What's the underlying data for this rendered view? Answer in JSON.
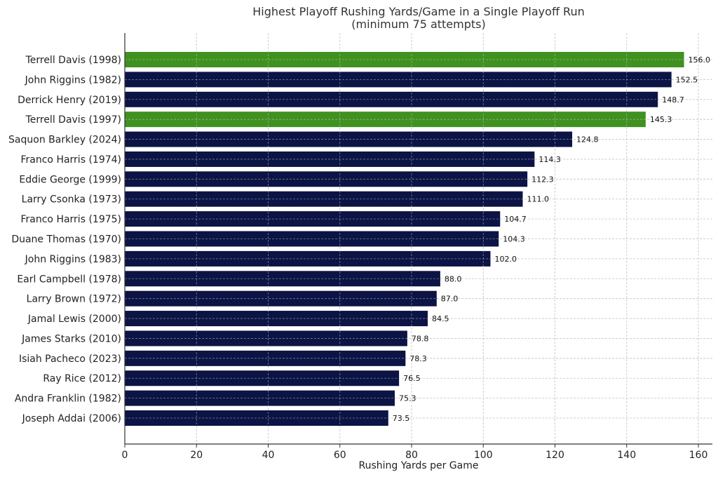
{
  "chart_data": {
    "type": "bar",
    "orientation": "horizontal",
    "title": "Highest Playoff Rushing Yards/Game in a Single Playoff Run",
    "subtitle": "(minimum 75 attempts)",
    "xlabel": "Rushing Yards per Game",
    "ylabel": "",
    "xlim": [
      0,
      164
    ],
    "xticks": [
      0,
      20,
      40,
      60,
      80,
      100,
      120,
      140,
      160
    ],
    "grid": true,
    "categories": [
      "Terrell Davis (1998)",
      "John Riggins (1982)",
      "Derrick Henry (2019)",
      "Terrell Davis (1997)",
      "Saquon Barkley (2024)",
      "Franco Harris (1974)",
      "Eddie George (1999)",
      "Larry Csonka (1973)",
      "Franco Harris (1975)",
      "Duane Thomas (1970)",
      "John Riggins (1983)",
      "Earl Campbell (1978)",
      "Larry Brown (1972)",
      "Jamal Lewis (2000)",
      "James Starks (2010)",
      "Isiah Pacheco (2023)",
      "Ray Rice (2012)",
      "Andra Franklin (1982)",
      "Joseph Addai (2006)"
    ],
    "values": [
      156.0,
      152.5,
      148.7,
      145.3,
      124.8,
      114.3,
      112.3,
      111.0,
      104.7,
      104.3,
      102.0,
      88.0,
      87.0,
      84.5,
      78.8,
      78.3,
      76.5,
      75.3,
      73.5
    ],
    "data_labels": [
      "156.0",
      "152.5",
      "148.7",
      "145.3",
      "124.8",
      "114.3",
      "112.3",
      "111.0",
      "104.7",
      "104.3",
      "102.0",
      "88.0",
      "87.0",
      "84.5",
      "78.8",
      "78.3",
      "76.5",
      "75.3",
      "73.5"
    ],
    "highlighted": [
      "Terrell Davis (1998)",
      "Terrell Davis (1997)"
    ],
    "colors": {
      "default": "#0c1445",
      "highlight": "#3f9120"
    }
  }
}
